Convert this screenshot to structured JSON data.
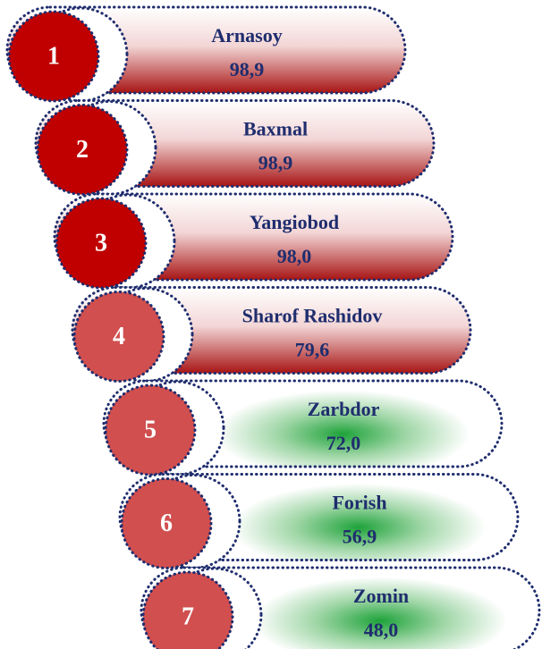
{
  "items": [
    {
      "rank": 1,
      "name": "Arnasoy",
      "value": "98,9",
      "circle_color": "#c00000",
      "band": "red"
    },
    {
      "rank": 2,
      "name": "Baxmal",
      "value": "98,9",
      "circle_color": "#c00000",
      "band": "red"
    },
    {
      "rank": 3,
      "name": "Yangiobod",
      "value": "98,0",
      "circle_color": "#c00000",
      "band": "red"
    },
    {
      "rank": 4,
      "name": "Sharof Rashidov",
      "value": "79,6",
      "circle_color": "#d14f4f",
      "band": "red"
    },
    {
      "rank": 5,
      "name": "Zarbdor",
      "value": "72,0",
      "circle_color": "#d14f4f",
      "band": "green"
    },
    {
      "rank": 6,
      "name": "Forish",
      "value": "56,9",
      "circle_color": "#d14f4f",
      "band": "green"
    },
    {
      "rank": 7,
      "name": "Zomin",
      "value": "48,0",
      "circle_color": "#d14f4f",
      "band": "green"
    }
  ]
}
